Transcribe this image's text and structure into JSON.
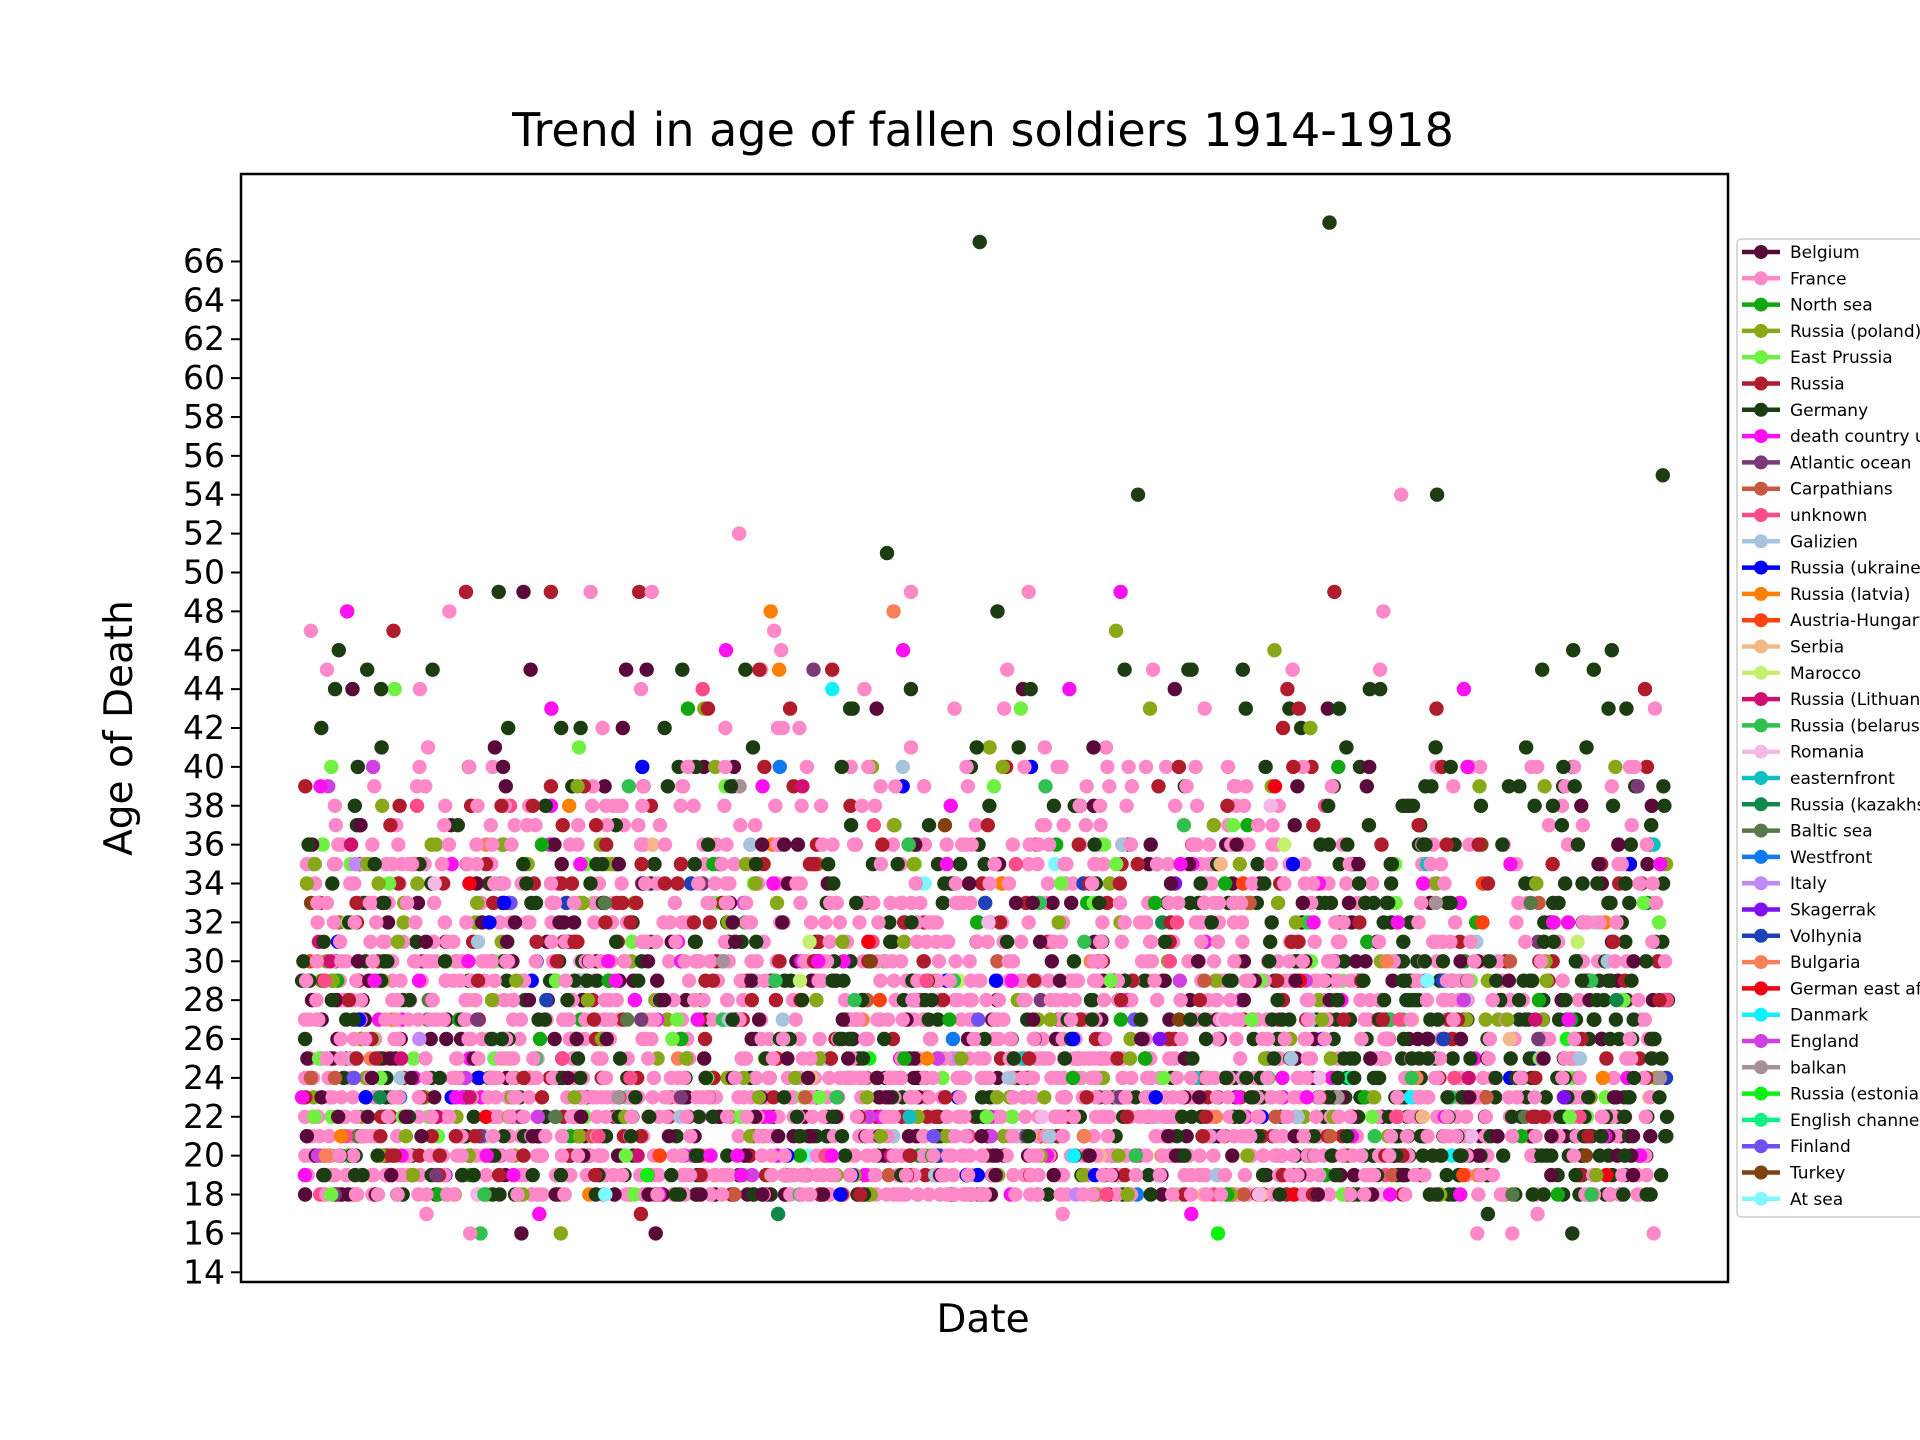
{
  "chart_data": {
    "type": "scatter",
    "title": "Trend in age of fallen soldiers 1914-1918",
    "xlabel": "Date",
    "ylabel": "Age of Death",
    "x_tick_labels_shown": false,
    "ylim": [
      13.5,
      70.5
    ],
    "y_ticks": [
      14,
      16,
      18,
      20,
      22,
      24,
      26,
      28,
      30,
      32,
      34,
      36,
      38,
      40,
      42,
      44,
      46,
      48,
      50,
      52,
      54,
      56,
      58,
      60,
      62,
      64,
      66
    ],
    "grid": false,
    "legend_position": "right, outside plot",
    "x_span": [
      "1914-08-01",
      "1918-11-11"
    ],
    "series": [
      {
        "name": "Belgium",
        "color": "#5a0a3a"
      },
      {
        "name": "France",
        "color": "#ff88c8"
      },
      {
        "name": "North sea",
        "color": "#10a810"
      },
      {
        "name": "Russia (poland)",
        "color": "#88a818"
      },
      {
        "name": "East Prussia",
        "color": "#70f040"
      },
      {
        "name": "Russia",
        "color": "#b01c2c"
      },
      {
        "name": "Germany",
        "color": "#1c3c12"
      },
      {
        "name": "death country u",
        "color": "#ff10f0"
      },
      {
        "name": "Atlantic ocean",
        "color": "#7a3a78"
      },
      {
        "name": "Carpathians",
        "color": "#c85840"
      },
      {
        "name": "unknown",
        "color": "#ff4c88"
      },
      {
        "name": "Galizien",
        "color": "#a8c4dc"
      },
      {
        "name": "Russia (ukraine)",
        "color": "#0000ff"
      },
      {
        "name": "Russia (latvia)",
        "color": "#ff8000"
      },
      {
        "name": "Austria-Hungary",
        "color": "#ff4010"
      },
      {
        "name": "Serbia",
        "color": "#f4b888"
      },
      {
        "name": "Marocco",
        "color": "#c4f070"
      },
      {
        "name": "Russia (Lithuani",
        "color": "#d01070"
      },
      {
        "name": "Russia (belarus)",
        "color": "#30c050"
      },
      {
        "name": "Romania",
        "color": "#f4b8e8"
      },
      {
        "name": "easternfront",
        "color": "#10c0c0"
      },
      {
        "name": "Russia (kazakhs",
        "color": "#108848"
      },
      {
        "name": "Baltic sea",
        "color": "#587848"
      },
      {
        "name": "Westfront",
        "color": "#1078f0"
      },
      {
        "name": "Italy",
        "color": "#c088f8"
      },
      {
        "name": "Skagerrak",
        "color": "#8010f0"
      },
      {
        "name": "Volhynia",
        "color": "#2040b8"
      },
      {
        "name": "Bulgaria",
        "color": "#f88058"
      },
      {
        "name": "German east af",
        "color": "#f00010"
      },
      {
        "name": "Danmark",
        "color": "#10f0ff"
      },
      {
        "name": "England",
        "color": "#d040e0"
      },
      {
        "name": "balkan",
        "color": "#a89098"
      },
      {
        "name": "Russia (estonia)",
        "color": "#10f010"
      },
      {
        "name": "English channel",
        "color": "#10f080"
      },
      {
        "name": "Finland",
        "color": "#7050f0"
      },
      {
        "name": "Turkey",
        "color": "#804010"
      },
      {
        "name": "At sea",
        "color": "#80f8ff"
      }
    ],
    "notable_points": [
      {
        "x": "1915-12-15",
        "y": 52,
        "series": "France"
      },
      {
        "x": "1916-02-01",
        "y": 46,
        "series": "France"
      },
      {
        "x": "1916-06-01",
        "y": 51,
        "series": "Germany"
      },
      {
        "x": "1916-01-20",
        "y": 48,
        "series": "Russia (latvia)"
      },
      {
        "x": "1916-09-15",
        "y": 67,
        "series": "Germany"
      },
      {
        "x": "1917-03-15",
        "y": 54,
        "series": "Germany"
      },
      {
        "x": "1917-10-20",
        "y": 68,
        "series": "Germany"
      },
      {
        "x": "1918-01-10",
        "y": 54,
        "series": "France"
      },
      {
        "x": "1918-02-20",
        "y": 54,
        "series": "Germany"
      },
      {
        "x": "1918-11-05",
        "y": 55,
        "series": "Germany"
      },
      {
        "x": "1915-04-10",
        "y": 16,
        "series": "Belgium"
      },
      {
        "x": "1917-05-15",
        "y": 17,
        "series": "death country u"
      }
    ]
  }
}
